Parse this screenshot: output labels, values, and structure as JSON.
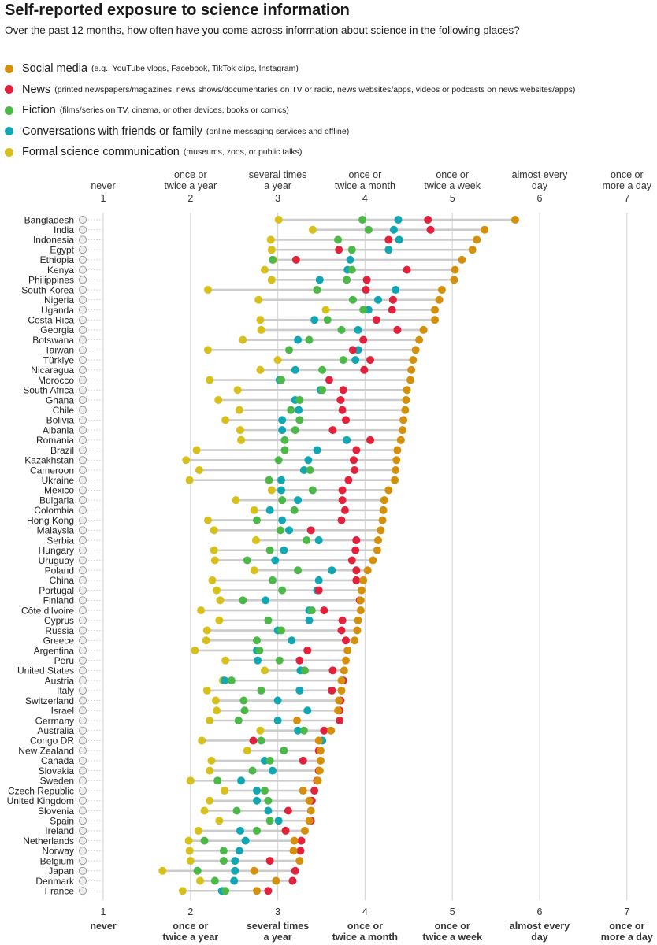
{
  "chart_data": {
    "type": "scatter",
    "title": "Self-reported exposure to science information",
    "subtitle": "Over the past 12 months, how often have you come across information about science in the following places?",
    "x_ticks": [
      {
        "value": 1,
        "label": "never"
      },
      {
        "value": 2,
        "label": "once or twice a year"
      },
      {
        "value": 3,
        "label": "several times a year"
      },
      {
        "value": 4,
        "label": "once or twice a month"
      },
      {
        "value": 5,
        "label": "once or twice a week"
      },
      {
        "value": 6,
        "label": "almost every day"
      },
      {
        "value": 7,
        "label": "once or more a day"
      }
    ],
    "xlim": [
      1,
      7
    ],
    "axis_position": "top and bottom",
    "grid": true,
    "legend_position": "top-left",
    "series": [
      {
        "name": "Social media",
        "description": "(e.g., YouTube vlogs, Facebook, TikTok clips, Instagram)",
        "color": "#D4900B"
      },
      {
        "name": "News",
        "description": "(printed newspapers/magazines, news shows/documentaries on TV or radio, news websites/apps, videos or podcasts on news websites/apps)",
        "color": "#E2213D"
      },
      {
        "name": "Fiction",
        "description": "(films/series on TV, cinema, or other devices, books or comics)",
        "color": "#4CB848"
      },
      {
        "name": "Conversations with friends or family",
        "description": "(online messaging services and offline)",
        "color": "#10A7B3"
      },
      {
        "name": "Formal science communication",
        "description": "(museums, zoos, or public talks)",
        "color": "#D8C01A"
      }
    ],
    "series_order_in_rows": [
      "Social media",
      "News",
      "Fiction",
      "Conversations with friends or family",
      "Formal science communication"
    ],
    "countries": [
      {
        "name": "Bangladesh",
        "values": [
          5.72,
          4.72,
          3.97,
          4.38,
          3.01
        ]
      },
      {
        "name": "India",
        "values": [
          5.37,
          4.75,
          4.04,
          4.33,
          3.4
        ]
      },
      {
        "name": "Indonesia",
        "values": [
          5.28,
          4.27,
          3.69,
          4.39,
          2.92
        ]
      },
      {
        "name": "Egypt",
        "values": [
          5.23,
          3.7,
          3.85,
          4.27,
          2.93
        ]
      },
      {
        "name": "Ethiopia",
        "values": [
          5.11,
          3.21,
          2.94,
          3.83,
          2.95
        ]
      },
      {
        "name": "Kenya",
        "values": [
          5.03,
          4.48,
          3.85,
          3.8,
          2.85
        ]
      },
      {
        "name": "Philippines",
        "values": [
          5.02,
          4.02,
          3.79,
          3.48,
          2.93
        ]
      },
      {
        "name": "South Korea",
        "values": [
          4.88,
          4.01,
          3.45,
          4.35,
          2.2
        ]
      },
      {
        "name": "Nigeria",
        "values": [
          4.85,
          4.32,
          3.86,
          4.15,
          2.78
        ]
      },
      {
        "name": "Uganda",
        "values": [
          4.8,
          4.31,
          3.98,
          4.04,
          3.55
        ]
      },
      {
        "name": "Costa Rica",
        "values": [
          4.8,
          4.13,
          3.57,
          3.42,
          2.8
        ]
      },
      {
        "name": "Georgia",
        "values": [
          4.67,
          4.37,
          3.73,
          3.92,
          2.81
        ]
      },
      {
        "name": "Botswana",
        "values": [
          4.62,
          3.98,
          3.36,
          3.23,
          2.6
        ]
      },
      {
        "name": "Taiwan",
        "values": [
          4.58,
          3.86,
          3.13,
          3.92,
          2.2
        ]
      },
      {
        "name": "Türkiye",
        "values": [
          4.55,
          4.06,
          3.75,
          3.89,
          3.0
        ]
      },
      {
        "name": "Nicaragua",
        "values": [
          4.53,
          3.99,
          3.51,
          3.2,
          2.8
        ]
      },
      {
        "name": "Morocco",
        "values": [
          4.52,
          3.59,
          3.04,
          3.02,
          2.22
        ]
      },
      {
        "name": "South Africa",
        "values": [
          4.48,
          3.75,
          3.51,
          3.49,
          2.54
        ]
      },
      {
        "name": "Ghana",
        "values": [
          4.47,
          3.72,
          3.25,
          3.2,
          2.32
        ]
      },
      {
        "name": "Chile",
        "values": [
          4.46,
          3.74,
          3.15,
          3.24,
          2.56
        ]
      },
      {
        "name": "Bolivia",
        "values": [
          4.44,
          3.78,
          3.25,
          3.05,
          2.4
        ]
      },
      {
        "name": "Albania",
        "values": [
          4.43,
          3.63,
          3.2,
          3.05,
          2.57
        ]
      },
      {
        "name": "Romania",
        "values": [
          4.41,
          4.06,
          3.08,
          3.79,
          2.58
        ]
      },
      {
        "name": "Brazil",
        "values": [
          4.37,
          3.9,
          3.08,
          3.45,
          2.07
        ]
      },
      {
        "name": "Kazakhstan",
        "values": [
          4.36,
          3.87,
          3.01,
          3.35,
          1.95
        ]
      },
      {
        "name": "Cameroon",
        "values": [
          4.35,
          3.88,
          3.37,
          3.3,
          2.1
        ]
      },
      {
        "name": "Ukraine",
        "values": [
          4.34,
          3.81,
          2.9,
          3.04,
          1.99
        ]
      },
      {
        "name": "Mexico",
        "values": [
          4.27,
          3.74,
          3.4,
          3.04,
          2.93
        ]
      },
      {
        "name": "Bulgaria",
        "values": [
          4.22,
          3.74,
          3.05,
          3.23,
          2.52
        ]
      },
      {
        "name": "Colombia",
        "values": [
          4.21,
          3.77,
          3.19,
          2.91,
          2.73
        ]
      },
      {
        "name": "Hong Kong",
        "values": [
          4.2,
          3.73,
          2.76,
          3.05,
          2.2
        ]
      },
      {
        "name": "Malaysia",
        "values": [
          4.18,
          3.38,
          3.03,
          3.13,
          2.27
        ]
      },
      {
        "name": "Serbia",
        "values": [
          4.15,
          3.9,
          3.33,
          3.47,
          2.75
        ]
      },
      {
        "name": "Hungary",
        "values": [
          4.14,
          3.89,
          2.91,
          3.07,
          2.27
        ]
      },
      {
        "name": "Uruguay",
        "values": [
          4.09,
          3.85,
          2.65,
          2.97,
          2.28
        ]
      },
      {
        "name": "Poland",
        "values": [
          4.03,
          3.9,
          3.23,
          3.62,
          2.73
        ]
      },
      {
        "name": "China",
        "values": [
          3.98,
          3.9,
          2.94,
          3.47,
          2.25
        ]
      },
      {
        "name": "Portugal",
        "values": [
          3.96,
          3.47,
          3.05,
          3.45,
          2.3
        ]
      },
      {
        "name": "Finland",
        "values": [
          3.95,
          3.94,
          2.6,
          2.86,
          2.34
        ]
      },
      {
        "name": "Côte d'Ivoire",
        "values": [
          3.95,
          3.53,
          3.39,
          3.36,
          2.12
        ]
      },
      {
        "name": "Cyprus",
        "values": [
          3.92,
          3.74,
          2.89,
          3.36,
          2.33
        ]
      },
      {
        "name": "Russia",
        "values": [
          3.91,
          3.73,
          3.04,
          3.0,
          2.19
        ]
      },
      {
        "name": "Greece",
        "values": [
          3.88,
          3.78,
          2.76,
          3.16,
          2.18
        ]
      },
      {
        "name": "Argentina",
        "values": [
          3.8,
          3.34,
          2.79,
          2.76,
          2.05
        ]
      },
      {
        "name": "Peru",
        "values": [
          3.78,
          3.25,
          3.02,
          2.77,
          2.4
        ]
      },
      {
        "name": "United States",
        "values": [
          3.76,
          3.63,
          3.31,
          3.26,
          2.85
        ]
      },
      {
        "name": "Austria",
        "values": [
          3.73,
          3.75,
          2.47,
          2.39,
          2.37
        ]
      },
      {
        "name": "Italy",
        "values": [
          3.73,
          3.62,
          2.81,
          3.25,
          2.19
        ]
      },
      {
        "name": "Switzerland",
        "values": [
          3.7,
          3.72,
          2.61,
          3.0,
          2.29
        ]
      },
      {
        "name": "Israel",
        "values": [
          3.69,
          3.71,
          2.62,
          3.34,
          2.3
        ]
      },
      {
        "name": "Germany",
        "values": [
          3.22,
          3.71,
          2.55,
          3.0,
          2.22
        ]
      },
      {
        "name": "Australia",
        "values": [
          3.61,
          3.53,
          3.3,
          3.23,
          2.8
        ]
      },
      {
        "name": "Congo DR",
        "values": [
          3.47,
          2.72,
          2.81,
          3.51,
          2.13
        ]
      },
      {
        "name": "New Zealand",
        "values": [
          3.49,
          3.47,
          3.07,
          3.07,
          2.65
        ]
      },
      {
        "name": "Canada",
        "values": [
          3.49,
          3.29,
          2.91,
          2.85,
          2.24
        ]
      },
      {
        "name": "Slovakia",
        "values": [
          3.48,
          3.47,
          2.71,
          2.94,
          2.22
        ]
      },
      {
        "name": "Sweden",
        "values": [
          3.46,
          3.45,
          2.31,
          2.58,
          2.0
        ]
      },
      {
        "name": "Czech Republic",
        "values": [
          3.29,
          3.42,
          2.85,
          2.76,
          2.39
        ]
      },
      {
        "name": "United Kingdom",
        "values": [
          3.36,
          3.39,
          2.89,
          2.76,
          2.22
        ]
      },
      {
        "name": "Slovenia",
        "values": [
          3.38,
          3.12,
          2.53,
          2.89,
          2.16
        ]
      },
      {
        "name": "Spain",
        "values": [
          3.36,
          3.38,
          2.91,
          3.01,
          2.33
        ]
      },
      {
        "name": "Ireland",
        "values": [
          3.31,
          3.09,
          2.76,
          2.57,
          2.09
        ]
      },
      {
        "name": "Netherlands",
        "values": [
          3.19,
          3.27,
          2.16,
          2.63,
          1.98
        ]
      },
      {
        "name": "Norway",
        "values": [
          3.18,
          3.26,
          2.38,
          2.56,
          1.99
        ]
      },
      {
        "name": "Belgium",
        "values": [
          3.25,
          2.91,
          2.38,
          2.51,
          2.0
        ]
      },
      {
        "name": "Japan",
        "values": [
          2.73,
          3.2,
          2.08,
          2.51,
          1.68
        ]
      },
      {
        "name": "Denmark",
        "values": [
          2.98,
          3.17,
          2.28,
          2.5,
          2.11
        ]
      },
      {
        "name": "France",
        "values": [
          2.76,
          2.89,
          2.4,
          2.36,
          1.91
        ]
      }
    ]
  }
}
